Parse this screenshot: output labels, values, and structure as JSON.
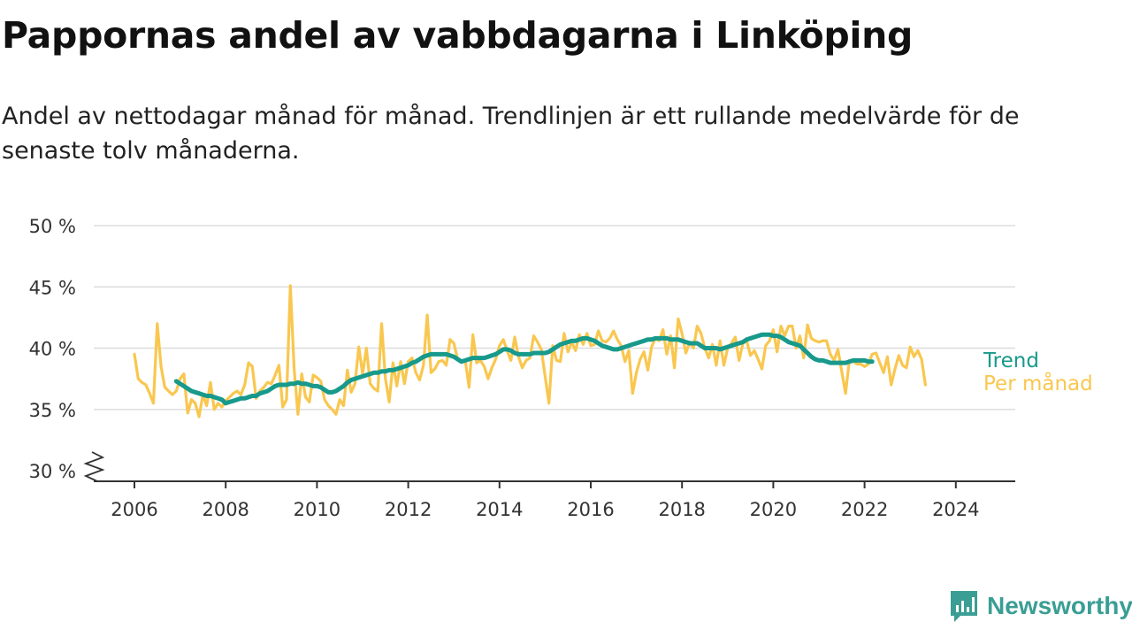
{
  "title": "Pappornas andel av vabbdagarna i Linköping",
  "subtitle": "Andel av nettodagar månad för månad. Trendlinjen är ett rullande medelvärde för de senaste tolv månaderna.",
  "brand": {
    "name": "Newsworthy",
    "icon": "newsworthy-logo-icon"
  },
  "colors": {
    "trend": "#17998b",
    "monthly": "#f9c74f",
    "grid": "#dddddd",
    "axis": "#333333"
  },
  "chart_data": {
    "type": "line",
    "title": "Pappornas andel av vabbdagarna i Linköping",
    "subtitle": "Andel av nettodagar månad för månad. Trendlinjen är ett rullande medelvärde för de senaste tolv månaderna.",
    "xlabel": "",
    "ylabel": "",
    "ylim": [
      30,
      50
    ],
    "y_axis_break": true,
    "y_ticks": [
      30,
      35,
      40,
      45,
      50
    ],
    "y_tick_labels": [
      "30 %",
      "35 %",
      "40 %",
      "45 %",
      "50 %"
    ],
    "xlim": [
      2005.0,
      2025.2
    ],
    "x_ticks": [
      2006,
      2008,
      2010,
      2012,
      2014,
      2016,
      2018,
      2020,
      2022,
      2024
    ],
    "x_tick_labels": [
      "2006",
      "2008",
      "2010",
      "2012",
      "2014",
      "2016",
      "2018",
      "2020",
      "2022",
      "2024"
    ],
    "grid": true,
    "legend": "end-of-line labels, right",
    "series": [
      {
        "name": "Per månad",
        "color": "#f9c74f",
        "x_start": "2006-01",
        "frequency": "monthly",
        "values": [
          39.5,
          37.5,
          37.2,
          37.0,
          36.3,
          35.5,
          42.0,
          38.5,
          36.8,
          36.5,
          36.2,
          36.5,
          37.5,
          37.9,
          34.7,
          35.8,
          35.5,
          34.4,
          36.2,
          35.3,
          37.2,
          35.0,
          35.5,
          35.2,
          35.7,
          36.0,
          36.3,
          36.5,
          36.2,
          37.0,
          38.8,
          38.5,
          35.9,
          36.5,
          36.8,
          37.2,
          37.1,
          37.8,
          38.6,
          35.2,
          35.8,
          45.1,
          38.3,
          34.6,
          37.9,
          36.0,
          35.6,
          37.8,
          37.6,
          37.3,
          35.8,
          35.3,
          35.0,
          34.6,
          35.8,
          35.3,
          38.2,
          36.4,
          37.1,
          40.1,
          37.9,
          40.0,
          37.1,
          36.7,
          36.5,
          42.0,
          37.5,
          35.6,
          38.8,
          36.9,
          38.9,
          37.1,
          38.9,
          39.2,
          38.0,
          37.4,
          38.6,
          42.7,
          38.0,
          38.3,
          38.9,
          39.0,
          38.6,
          40.7,
          40.4,
          39.1,
          38.9,
          39.0,
          36.8,
          41.1,
          38.8,
          39.0,
          38.5,
          37.5,
          38.4,
          39.1,
          40.2,
          40.7,
          39.8,
          39.0,
          40.9,
          39.3,
          38.4,
          39.0,
          39.2,
          41.0,
          40.5,
          39.9,
          37.7,
          35.5,
          40.2,
          39.0,
          38.9,
          41.2,
          39.7,
          40.5,
          39.8,
          41.1,
          40.3,
          41.2,
          40.2,
          40.3,
          41.4,
          40.6,
          40.5,
          40.8,
          41.4,
          40.7,
          40.2,
          38.9,
          39.8,
          36.3,
          38.0,
          39.1,
          39.7,
          38.2,
          40.1,
          40.8,
          40.6,
          41.5,
          39.5,
          41.0,
          38.4,
          42.4,
          41.2,
          39.6,
          40.5,
          40.0,
          41.8,
          41.2,
          40.0,
          39.2,
          40.3,
          38.6,
          40.6,
          38.6,
          40.0,
          40.4,
          40.9,
          39.0,
          40.4,
          40.6,
          39.4,
          39.8,
          39.1,
          38.3,
          40.2,
          40.6,
          41.5,
          39.7,
          41.8,
          41.0,
          41.8,
          41.8,
          40.0,
          41.0,
          39.2,
          41.9,
          40.8,
          40.6,
          40.5,
          40.6,
          40.6,
          39.5,
          39.0,
          39.9,
          38.1,
          36.3,
          39.0,
          38.9,
          38.7,
          38.7,
          38.5,
          38.7,
          39.5,
          39.6,
          38.8,
          38.0,
          39.3,
          37.0,
          38.3,
          39.4,
          38.6,
          38.4,
          40.1,
          39.3,
          39.8,
          39.1,
          37.0
        ]
      },
      {
        "name": "Trend",
        "color": "#17998b",
        "x_start": "2006-12",
        "frequency": "monthly",
        "values": [
          37.3,
          37.1,
          36.9,
          36.7,
          36.5,
          36.4,
          36.3,
          36.2,
          36.1,
          36.1,
          36.0,
          35.9,
          35.8,
          35.5,
          35.6,
          35.7,
          35.8,
          35.9,
          35.9,
          36.0,
          36.1,
          36.1,
          36.3,
          36.4,
          36.5,
          36.7,
          36.9,
          37.0,
          37.0,
          37.0,
          37.1,
          37.1,
          37.2,
          37.1,
          37.1,
          37.0,
          36.9,
          36.9,
          36.8,
          36.6,
          36.4,
          36.4,
          36.5,
          36.7,
          36.9,
          37.2,
          37.4,
          37.5,
          37.6,
          37.7,
          37.8,
          37.9,
          38.0,
          38.0,
          38.1,
          38.1,
          38.2,
          38.2,
          38.3,
          38.4,
          38.5,
          38.6,
          38.8,
          38.9,
          39.1,
          39.3,
          39.4,
          39.5,
          39.5,
          39.5,
          39.5,
          39.5,
          39.4,
          39.3,
          39.1,
          38.9,
          39.0,
          39.1,
          39.2,
          39.2,
          39.2,
          39.2,
          39.3,
          39.4,
          39.5,
          39.7,
          39.9,
          39.9,
          39.8,
          39.6,
          39.5,
          39.5,
          39.5,
          39.5,
          39.6,
          39.6,
          39.6,
          39.6,
          39.7,
          39.9,
          40.1,
          40.3,
          40.4,
          40.5,
          40.6,
          40.6,
          40.7,
          40.8,
          40.8,
          40.7,
          40.6,
          40.4,
          40.2,
          40.1,
          40.0,
          39.9,
          39.9,
          40.0,
          40.1,
          40.2,
          40.3,
          40.4,
          40.5,
          40.6,
          40.7,
          40.7,
          40.8,
          40.8,
          40.8,
          40.8,
          40.7,
          40.7,
          40.7,
          40.6,
          40.5,
          40.4,
          40.4,
          40.4,
          40.2,
          40.0,
          40.0,
          40.0,
          40.0,
          39.9,
          40.0,
          40.1,
          40.2,
          40.3,
          40.4,
          40.5,
          40.7,
          40.8,
          40.9,
          41.0,
          41.1,
          41.1,
          41.1,
          41.0,
          41.0,
          40.9,
          40.7,
          40.5,
          40.4,
          40.3,
          40.2,
          39.9,
          39.6,
          39.3,
          39.1,
          39.0,
          39.0,
          38.9,
          38.8,
          38.8,
          38.8,
          38.8,
          38.8,
          38.9,
          39.0,
          39.0,
          39.0,
          39.0,
          38.9,
          38.9
        ]
      }
    ]
  }
}
